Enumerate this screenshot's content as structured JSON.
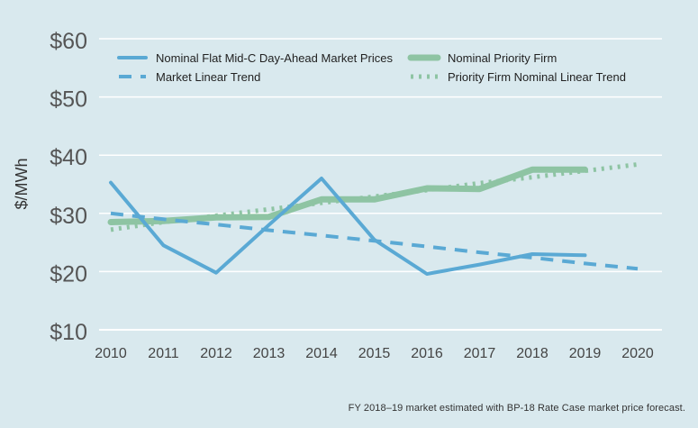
{
  "chart_data": {
    "type": "line",
    "ylabel": "$/MWh",
    "ylim": [
      10,
      60
    ],
    "y_ticks": [
      "$60",
      "$50",
      "$40",
      "$30",
      "$20",
      "$10"
    ],
    "y_tick_values": [
      60,
      50,
      40,
      30,
      20,
      10
    ],
    "categories": [
      "2010",
      "2011",
      "2012",
      "2013",
      "2014",
      "2015",
      "2016",
      "2017",
      "2018",
      "2019",
      "2020"
    ],
    "grid": true,
    "legend_position": "top",
    "series": [
      {
        "name": "Nominal Flat Mid-C Day-Ahead Market Prices",
        "style": "solid",
        "color": "#5aa9d4",
        "values": [
          35.3,
          24.5,
          19.8,
          28.0,
          36.0,
          25.5,
          19.6,
          21.2,
          23.0,
          22.8,
          null
        ]
      },
      {
        "name": "Market Linear Trend",
        "style": "dashed",
        "color": "#5aa9d4",
        "values": [
          30.0,
          29.0,
          28.1,
          27.1,
          26.2,
          25.3,
          24.3,
          23.3,
          22.4,
          21.4,
          20.5
        ]
      },
      {
        "name": "Nominal Priority Firm",
        "style": "solid-thick",
        "color": "#8ec4a3",
        "values": [
          28.5,
          28.7,
          29.3,
          29.4,
          32.4,
          32.4,
          34.3,
          34.2,
          37.5,
          37.5,
          null
        ]
      },
      {
        "name": "Priority Firm Nominal Linear Trend",
        "style": "dotted",
        "color": "#8ec4a3",
        "values": [
          27.2,
          28.5,
          29.6,
          30.7,
          31.8,
          32.9,
          34.0,
          35.2,
          36.2,
          37.3,
          38.4
        ]
      }
    ],
    "footnote": "FY 2018–19 market estimated with BP-18 Rate Case market price forecast."
  }
}
